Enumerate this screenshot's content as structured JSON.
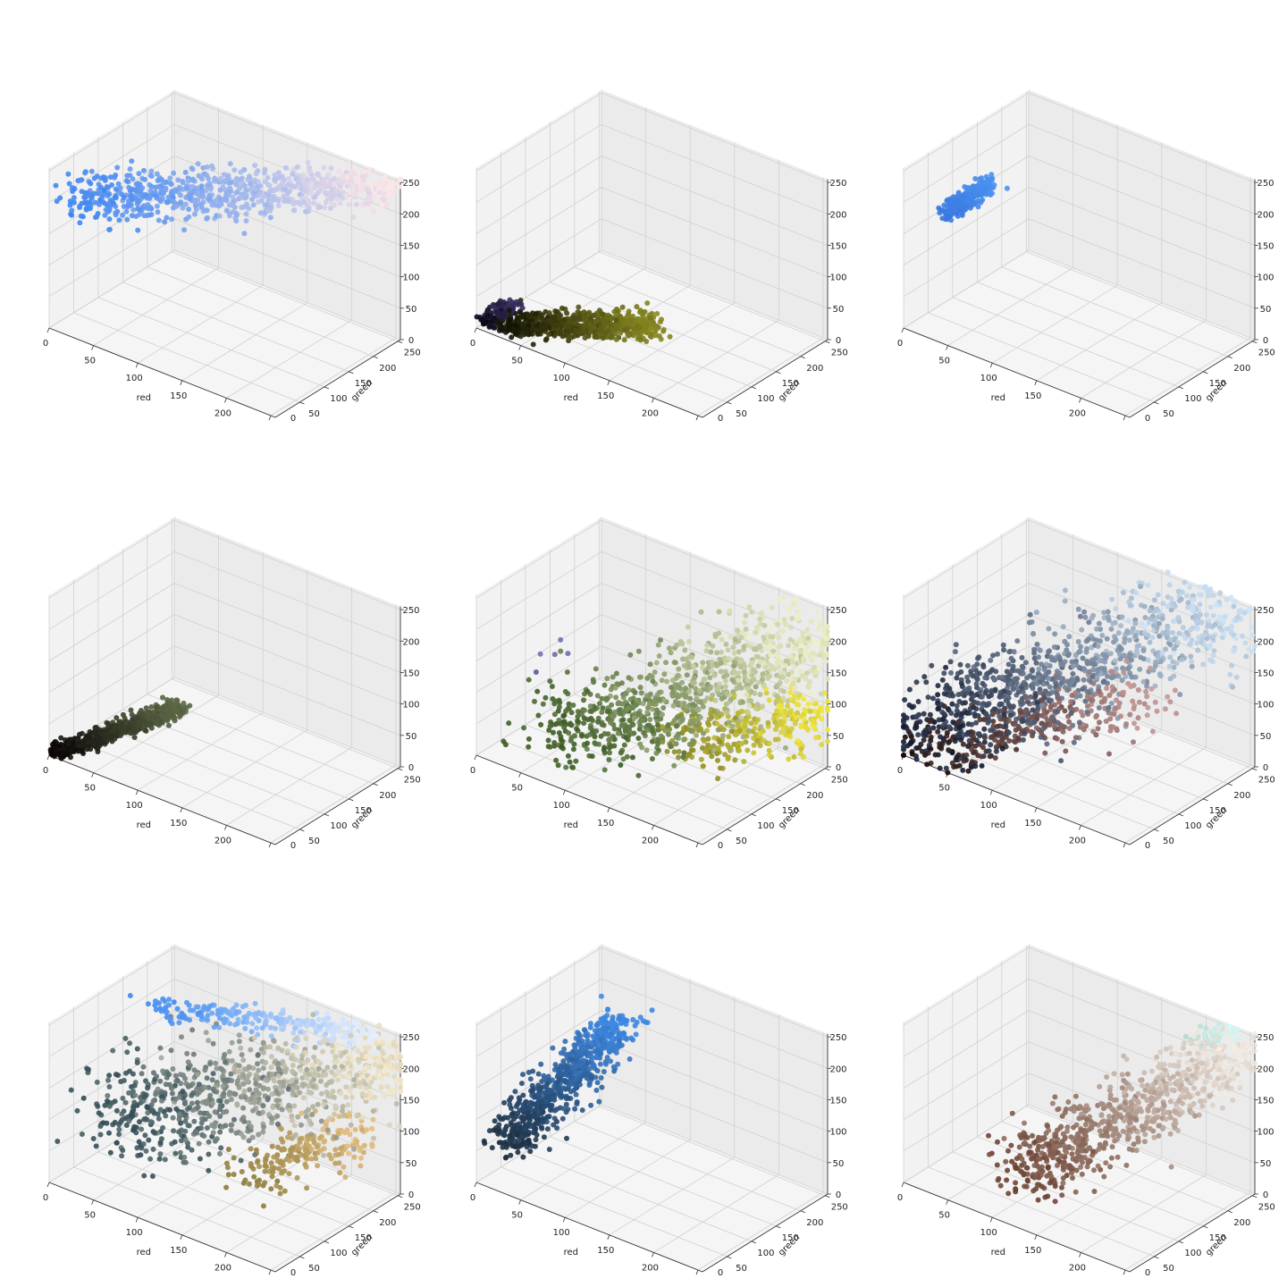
{
  "chart_data": [
    {
      "type": "scatter",
      "projection": "3d",
      "xlabel": "red",
      "ylabel": "green",
      "zlabel": "blue",
      "xlim": [
        0,
        255
      ],
      "ylim": [
        0,
        255
      ],
      "zlim": [
        0,
        255
      ],
      "xticks": [
        0,
        50,
        100,
        150,
        200,
        250
      ],
      "yticks": [
        50,
        100,
        150,
        200,
        250
      ],
      "zticks": [
        0,
        50,
        100,
        150,
        200,
        250
      ],
      "grid": true,
      "clusters": [
        {
          "from": [
            20,
            20,
            210
          ],
          "to": [
            250,
            245,
            245
          ],
          "spread": 16,
          "count": 800,
          "color_from": "#3d85f2",
          "color_to": "#ffe6e6"
        }
      ]
    },
    {
      "type": "scatter",
      "projection": "3d",
      "xlabel": "red",
      "ylabel": "green",
      "zlabel": "blue",
      "xlim": [
        0,
        255
      ],
      "ylim": [
        0,
        255
      ],
      "zlim": [
        0,
        255
      ],
      "xticks": [
        0,
        50,
        100,
        150,
        200,
        250
      ],
      "yticks": [
        50,
        100,
        150,
        200,
        250
      ],
      "zticks": [
        0,
        50,
        100,
        150,
        200,
        250
      ],
      "grid": true,
      "clusters": [
        {
          "from": [
            20,
            20,
            5
          ],
          "to": [
            130,
            125,
            15
          ],
          "spread": 9,
          "count": 700,
          "color_from": "#141405",
          "color_to": "#8a8a22"
        },
        {
          "from": [
            5,
            5,
            10
          ],
          "to": [
            28,
            28,
            40
          ],
          "spread": 6,
          "count": 90,
          "color_from": "#0a0818",
          "color_to": "#3a3060"
        }
      ]
    },
    {
      "type": "scatter",
      "projection": "3d",
      "xlabel": "red",
      "ylabel": "green",
      "zlabel": "blue",
      "xlim": [
        0,
        255
      ],
      "ylim": [
        0,
        255
      ],
      "zlim": [
        0,
        255
      ],
      "xticks": [
        0,
        50,
        100,
        150,
        200,
        250
      ],
      "yticks": [
        50,
        100,
        150,
        200,
        250
      ],
      "zticks": [
        0,
        50,
        100,
        150,
        200,
        250
      ],
      "grid": true,
      "clusters": [
        {
          "from": [
            25,
            40,
            175
          ],
          "to": [
            55,
            80,
            225
          ],
          "spread": 5,
          "count": 250,
          "color_from": "#3a78e0",
          "color_to": "#4a92f0"
        }
      ]
    },
    {
      "type": "scatter",
      "projection": "3d",
      "xlabel": "red",
      "ylabel": "green",
      "zlabel": "blue",
      "xlim": [
        0,
        255
      ],
      "ylim": [
        0,
        255
      ],
      "zlim": [
        0,
        255
      ],
      "xticks": [
        0,
        50,
        100,
        150,
        200,
        250
      ],
      "yticks": [
        50,
        100,
        150,
        200,
        250
      ],
      "zticks": [
        0,
        50,
        100,
        150,
        200,
        250
      ],
      "grid": true,
      "clusters": [
        {
          "from": [
            5,
            3,
            3
          ],
          "to": [
            95,
            95,
            85
          ],
          "spread": 6,
          "count": 600,
          "color_from": "#0a0505",
          "color_to": "#5e6a48"
        }
      ]
    },
    {
      "type": "scatter",
      "projection": "3d",
      "xlabel": "red",
      "ylabel": "green",
      "zlabel": "blue",
      "xlim": [
        0,
        255
      ],
      "ylim": [
        0,
        255
      ],
      "zlim": [
        0,
        255
      ],
      "xticks": [
        0,
        50,
        100,
        150,
        200,
        250
      ],
      "yticks": [
        50,
        100,
        150,
        200,
        250
      ],
      "zticks": [
        0,
        50,
        100,
        150,
        200,
        250
      ],
      "grid": true,
      "clusters": [
        {
          "from": [
            60,
            80,
            20
          ],
          "to": [
            245,
            245,
            200
          ],
          "spread": 28,
          "count": 900,
          "color_from": "#3a5a22",
          "color_to": "#f0f0c8"
        },
        {
          "from": [
            150,
            150,
            30
          ],
          "to": [
            250,
            245,
            90
          ],
          "spread": 20,
          "count": 300,
          "color_from": "#8a8a2a",
          "color_to": "#f2e83a"
        },
        {
          "from": [
            40,
            55,
            140
          ],
          "to": [
            55,
            75,
            175
          ],
          "spread": 10,
          "count": 5,
          "color_from": "#5a5a9a",
          "color_to": "#7a78b8"
        }
      ]
    },
    {
      "type": "scatter",
      "projection": "3d",
      "xlabel": "red",
      "ylabel": "green",
      "zlabel": "blue",
      "xlim": [
        0,
        255
      ],
      "ylim": [
        0,
        255
      ],
      "zlim": [
        0,
        255
      ],
      "xticks": [
        0,
        50,
        100,
        150,
        200,
        250
      ],
      "yticks": [
        50,
        100,
        150,
        200,
        250
      ],
      "zticks": [
        0,
        50,
        100,
        150,
        200,
        250
      ],
      "grid": true,
      "clusters": [
        {
          "from": [
            5,
            10,
            30
          ],
          "to": [
            230,
            240,
            250
          ],
          "spread": 30,
          "count": 1000,
          "color_from": "#101830",
          "color_to": "#cfe6fa"
        },
        {
          "from": [
            10,
            5,
            5
          ],
          "to": [
            200,
            140,
            140
          ],
          "spread": 18,
          "count": 300,
          "color_from": "#1a0a06",
          "color_to": "#c89a9a"
        }
      ]
    },
    {
      "type": "scatter",
      "projection": "3d",
      "xlabel": "red",
      "ylabel": "green",
      "zlabel": "blue",
      "xlim": [
        0,
        255
      ],
      "ylim": [
        0,
        255
      ],
      "zlim": [
        0,
        255
      ],
      "xticks": [
        0,
        50,
        100,
        150,
        200,
        250
      ],
      "yticks": [
        50,
        100,
        150,
        200,
        250
      ],
      "zticks": [
        0,
        50,
        100,
        150,
        200,
        250
      ],
      "grid": true,
      "clusters": [
        {
          "from": [
            40,
            70,
            90
          ],
          "to": [
            250,
            240,
            215
          ],
          "spread": 32,
          "count": 900,
          "color_from": "#2e4a55",
          "color_to": "#f5e8c8"
        },
        {
          "from": [
            50,
            130,
            245
          ],
          "to": [
            230,
            240,
            250
          ],
          "spread": 10,
          "count": 250,
          "color_from": "#3d8af0",
          "color_to": "#e8f0ff"
        },
        {
          "from": [
            150,
            120,
            30
          ],
          "to": [
            245,
            200,
            120
          ],
          "spread": 16,
          "count": 200,
          "color_from": "#8a7a3a",
          "color_to": "#e8c080"
        }
      ]
    },
    {
      "type": "scatter",
      "projection": "3d",
      "xlabel": "red",
      "ylabel": "green",
      "zlabel": "blue",
      "xlim": [
        0,
        255
      ],
      "ylim": [
        0,
        255
      ],
      "zlim": [
        0,
        255
      ],
      "xticks": [
        0,
        50,
        100,
        150,
        200,
        250
      ],
      "yticks": [
        50,
        100,
        150,
        200,
        250
      ],
      "zticks": [
        0,
        50,
        100,
        150,
        200,
        250
      ],
      "grid": true,
      "clusters": [
        {
          "from": [
            15,
            35,
            55
          ],
          "to": [
            80,
            150,
            230
          ],
          "spread": 12,
          "count": 700,
          "color_from": "#1e3040",
          "color_to": "#3d8ae8"
        }
      ]
    },
    {
      "type": "scatter",
      "projection": "3d",
      "xlabel": "red",
      "ylabel": "green",
      "zlabel": "blue",
      "xlim": [
        0,
        255
      ],
      "ylim": [
        0,
        255
      ],
      "zlim": [
        0,
        255
      ],
      "xticks": [
        0,
        50,
        100,
        150,
        200,
        250
      ],
      "yticks": [
        50,
        100,
        150,
        200,
        250
      ],
      "zticks": [
        0,
        50,
        100,
        150,
        200,
        250
      ],
      "grid": true,
      "clusters": [
        {
          "from": [
            100,
            60,
            40
          ],
          "to": [
            250,
            245,
            235
          ],
          "spread": 20,
          "count": 800,
          "color_from": "#6a4030",
          "color_to": "#f5f0e8"
        },
        {
          "from": [
            200,
            230,
            225
          ],
          "to": [
            235,
            252,
            252
          ],
          "spread": 6,
          "count": 60,
          "color_from": "#b0d8cc",
          "color_to": "#d8faf8"
        }
      ]
    }
  ]
}
